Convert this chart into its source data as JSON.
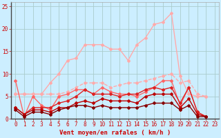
{
  "background_color": "#cceeff",
  "grid_color": "#aacccc",
  "xlabel": "Vent moyen/en rafales ( km/h )",
  "xlabel_color": "#cc0000",
  "xlabel_fontsize": 6.5,
  "tick_color": "#cc0000",
  "tick_fontsize": 5.5,
  "xlim": [
    -0.5,
    23.5
  ],
  "ylim": [
    0,
    26
  ],
  "yticks": [
    0,
    5,
    10,
    15,
    20,
    25
  ],
  "xticks": [
    0,
    1,
    2,
    3,
    4,
    5,
    6,
    7,
    8,
    9,
    10,
    11,
    12,
    13,
    14,
    15,
    16,
    17,
    18,
    19,
    20,
    21,
    22,
    23
  ],
  "series": [
    {
      "x": [
        0,
        1,
        2,
        3,
        4,
        5,
        6,
        7,
        8,
        9,
        10,
        11,
        12,
        13,
        14,
        15,
        16,
        17,
        18,
        19,
        20,
        21,
        22,
        23
      ],
      "y": [
        5.5,
        5.5,
        5.5,
        5.5,
        8.0,
        10.0,
        13.0,
        13.5,
        16.5,
        16.5,
        16.5,
        15.5,
        15.5,
        13.0,
        16.5,
        18.0,
        21.0,
        21.5,
        23.5,
        9.5,
        5.5,
        5.0,
        5.0,
        null
      ],
      "color": "#ffaaaa",
      "lw": 1.0,
      "marker": "D",
      "ms": 2.0,
      "alpha": 1.0,
      "dashed": false
    },
    {
      "x": [
        0,
        1,
        2,
        3,
        4,
        5,
        6,
        7,
        8,
        9,
        10,
        11,
        12,
        13,
        14,
        15,
        16,
        17,
        18,
        19,
        20,
        21,
        22,
        23
      ],
      "y": [
        5.5,
        5.5,
        5.5,
        5.5,
        5.5,
        5.5,
        6.0,
        7.0,
        8.0,
        8.0,
        8.0,
        7.0,
        7.5,
        8.0,
        8.0,
        8.5,
        9.0,
        9.5,
        10.0,
        8.0,
        8.5,
        5.5,
        5.0,
        null
      ],
      "color": "#ffaaaa",
      "lw": 1.0,
      "marker": "D",
      "ms": 2.0,
      "alpha": 1.0,
      "dashed": true
    },
    {
      "x": [
        0,
        1,
        2,
        3,
        4,
        5,
        6,
        7,
        8,
        9,
        10,
        11,
        12,
        13,
        14,
        15,
        16,
        17,
        18,
        19,
        20,
        21,
        22,
        23
      ],
      "y": [
        8.5,
        0.5,
        5.0,
        3.0,
        2.0,
        5.0,
        5.5,
        6.5,
        6.5,
        5.5,
        7.0,
        6.0,
        5.5,
        5.5,
        5.0,
        6.0,
        7.0,
        8.5,
        8.5,
        3.0,
        7.0,
        1.5,
        0.5,
        null
      ],
      "color": "#ff6666",
      "lw": 1.0,
      "marker": "D",
      "ms": 2.0,
      "alpha": 1.0,
      "dashed": false
    },
    {
      "x": [
        0,
        1,
        2,
        3,
        4,
        5,
        6,
        7,
        8,
        9,
        10,
        11,
        12,
        13,
        14,
        15,
        16,
        17,
        18,
        19,
        20,
        21,
        22,
        23
      ],
      "y": [
        2.5,
        1.0,
        2.5,
        2.5,
        2.5,
        3.5,
        4.0,
        5.0,
        6.5,
        5.5,
        5.5,
        5.5,
        5.0,
        5.5,
        5.5,
        6.5,
        7.0,
        6.5,
        7.0,
        3.5,
        7.0,
        1.5,
        0.5,
        null
      ],
      "color": "#dd2222",
      "lw": 1.0,
      "marker": "D",
      "ms": 2.0,
      "alpha": 1.0,
      "dashed": false
    },
    {
      "x": [
        0,
        1,
        2,
        3,
        4,
        5,
        6,
        7,
        8,
        9,
        10,
        11,
        12,
        13,
        14,
        15,
        16,
        17,
        18,
        19,
        20,
        21,
        22,
        23
      ],
      "y": [
        2.5,
        1.0,
        2.0,
        2.0,
        1.5,
        2.5,
        2.5,
        3.5,
        4.0,
        3.5,
        4.5,
        4.0,
        4.0,
        4.0,
        3.5,
        5.0,
        5.5,
        5.5,
        5.5,
        2.5,
        4.5,
        1.0,
        0.5,
        null
      ],
      "color": "#bb0000",
      "lw": 1.0,
      "marker": "D",
      "ms": 2.0,
      "alpha": 1.0,
      "dashed": false
    },
    {
      "x": [
        0,
        1,
        2,
        3,
        4,
        5,
        6,
        7,
        8,
        9,
        10,
        11,
        12,
        13,
        14,
        15,
        16,
        17,
        18,
        19,
        20,
        21,
        22,
        23
      ],
      "y": [
        2.0,
        0.5,
        1.5,
        1.5,
        1.0,
        2.0,
        2.5,
        3.0,
        3.0,
        2.5,
        3.0,
        2.5,
        2.5,
        2.5,
        2.5,
        3.0,
        3.5,
        3.5,
        3.5,
        2.0,
        3.0,
        0.5,
        0.5,
        null
      ],
      "color": "#880000",
      "lw": 1.0,
      "marker": "D",
      "ms": 2.0,
      "alpha": 1.0,
      "dashed": false
    }
  ]
}
